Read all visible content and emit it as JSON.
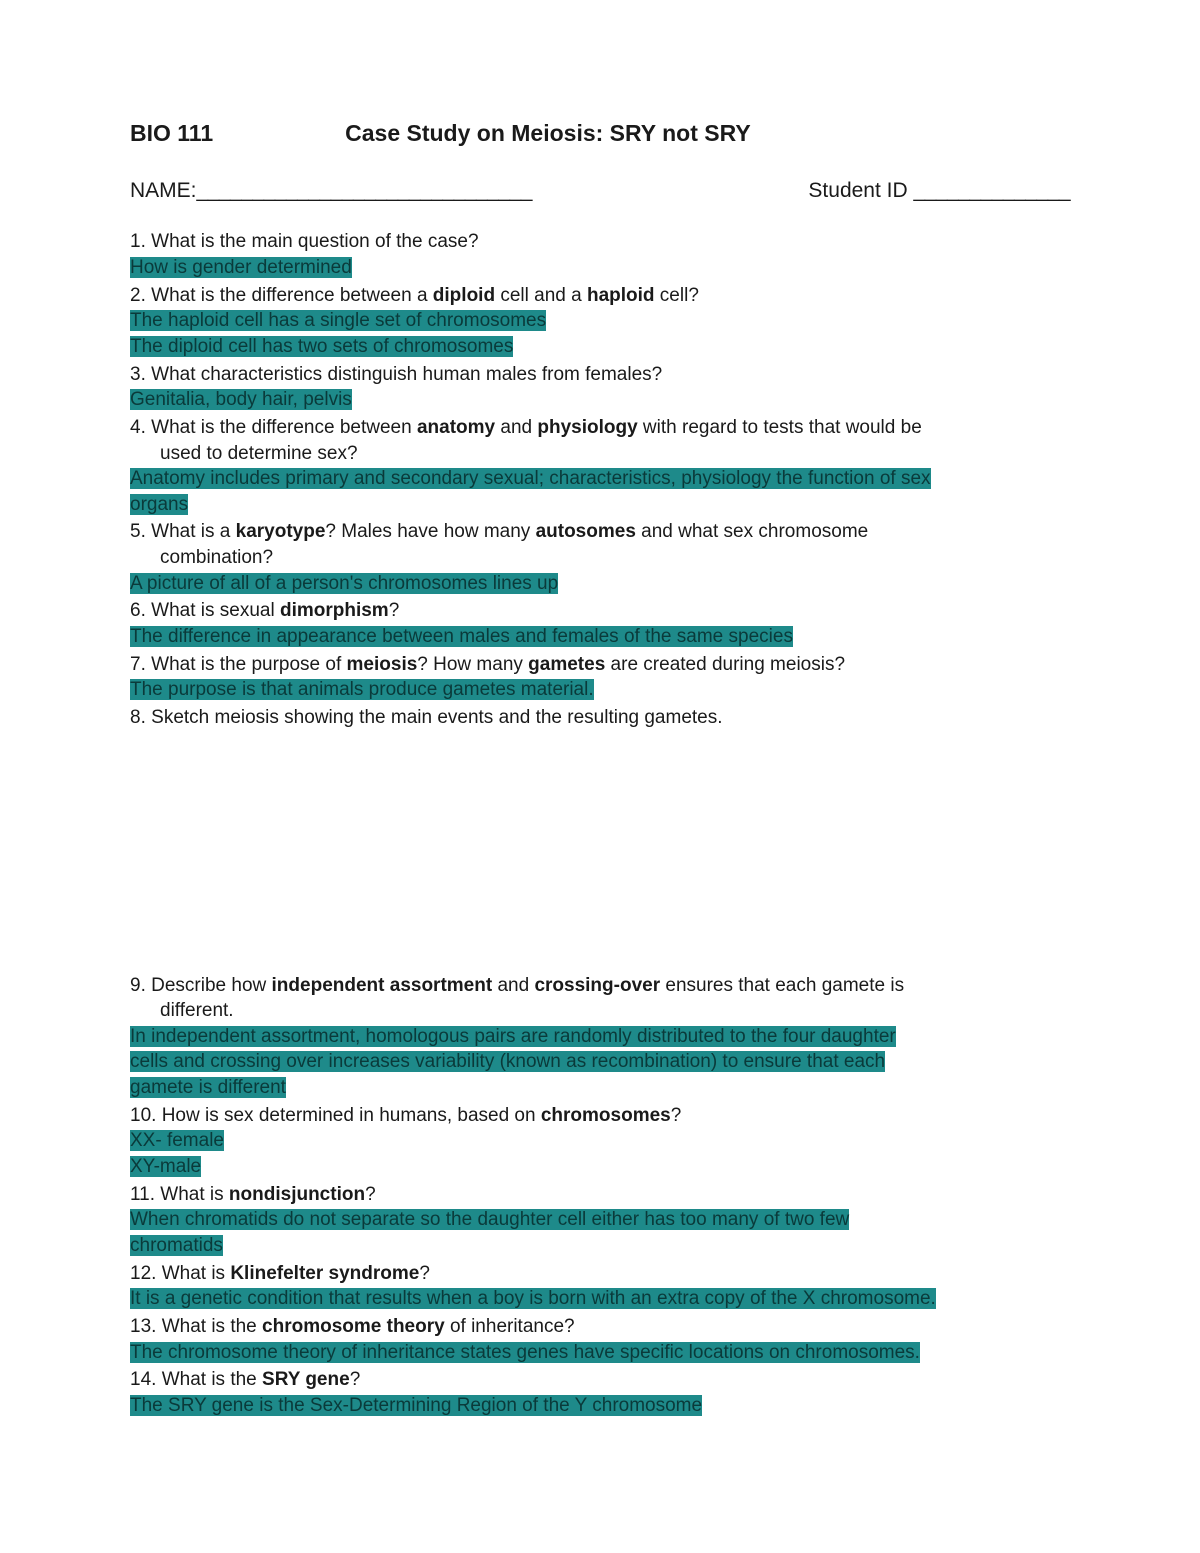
{
  "highlight_color": "#1e8a8a",
  "text_color": "#1a1a1a",
  "header": {
    "course": "BIO 111",
    "title": "Case Study on Meiosis: SRY not SRY"
  },
  "nameRow": {
    "nameLabel": "NAME:",
    "nameBlank": "______________________________",
    "idLabel": "Student ID ",
    "idBlank": "______________"
  },
  "q1": {
    "num": "1.",
    "text": "What is the main question of the case?"
  },
  "a1": "How is gender determined",
  "q2": {
    "num": "2.",
    "pre": "What is the difference between a ",
    "b1": "diploid",
    "mid": " cell and a ",
    "b2": "haploid",
    "post": " cell?"
  },
  "a2a": "The haploid cell has a single set of chromosomes",
  "a2b": "The diploid cell has two sets of chromosomes",
  "q3": {
    "num": "3.",
    "text": "What characteristics distinguish human males from females?"
  },
  "a3": "Genitalia, body hair, pelvis",
  "q4": {
    "num": "4.",
    "pre": "What is the difference between ",
    "b1": "anatomy",
    "mid": " and ",
    "b2": "physiology",
    "post": " with regard to tests that would be",
    "line2": "used to determine sex?"
  },
  "a4a": "Anatomy includes primary and secondary sexual; characteristics, physiology the function of sex ",
  "a4b": "organs",
  "q5": {
    "num": "5.",
    "pre": "What is a ",
    "b1": "karyotype",
    "mid": "? Males have how many ",
    "b2": "autosomes",
    "post": " and what sex chromosome",
    "line2": "combination?"
  },
  "a5": "A picture of all of a person's chromosomes lines up",
  "q6": {
    "num": "6.",
    "pre": "What is sexual ",
    "b1": "dimorphism",
    "post": "?"
  },
  "a6": "The difference in appearance between males and females of the same species",
  "q7": {
    "num": "7.",
    "pre": "What is the purpose of ",
    "b1": "meiosis",
    "mid": "? How many ",
    "b2": "gametes",
    "post": " are created during meiosis?"
  },
  "a7": "The purpose is that animals produce gametes material.",
  "q8": {
    "num": "8.",
    "text": "Sketch meiosis showing the main events and the resulting gametes."
  },
  "q9": {
    "num": "9.",
    "pre": "Describe how ",
    "b1": "independent assortment",
    "mid": " and ",
    "b2": "crossing-over",
    "post": " ensures that each gamete is",
    "line2": "different."
  },
  "a9a": "In independent assortment, homologous pairs are randomly distributed to the four daughter ",
  "a9b": "cells and crossing over increases variability (known as recombination) to ensure that each ",
  "a9c": "gamete is different",
  "q10": {
    "num": "10.",
    "pre": " How is sex determined in humans, based on ",
    "b1": "chromosomes",
    "post": "?"
  },
  "a10a": "XX- female",
  "a10b": "XY-male",
  "q11": {
    "num": "11.",
    "pre": " What is ",
    "b1": "nondisjunction",
    "post": "?"
  },
  "a11a": "When chromatids do not separate so the daughter cell either has too many of two few ",
  "a11b": "chromatids",
  "q12": {
    "num": "12.",
    "pre": " What is ",
    "b1": "Klinefelter syndrome",
    "post": "?"
  },
  "a12": "It is a genetic condition that results when a boy is born with an extra copy of the X chromosome.",
  "q13": {
    "num": "13.",
    "pre": " What is the ",
    "b1": "chromosome theory",
    "post": " of inheritance?"
  },
  "a13": "The chromosome theory of inheritance states genes have specific locations on chromosomes.",
  "q14": {
    "num": "14.",
    "pre": " What is the ",
    "b1": "SRY gene",
    "post": "?"
  },
  "a14": "The SRY gene is the Sex-Determining Region of the Y chromosome"
}
